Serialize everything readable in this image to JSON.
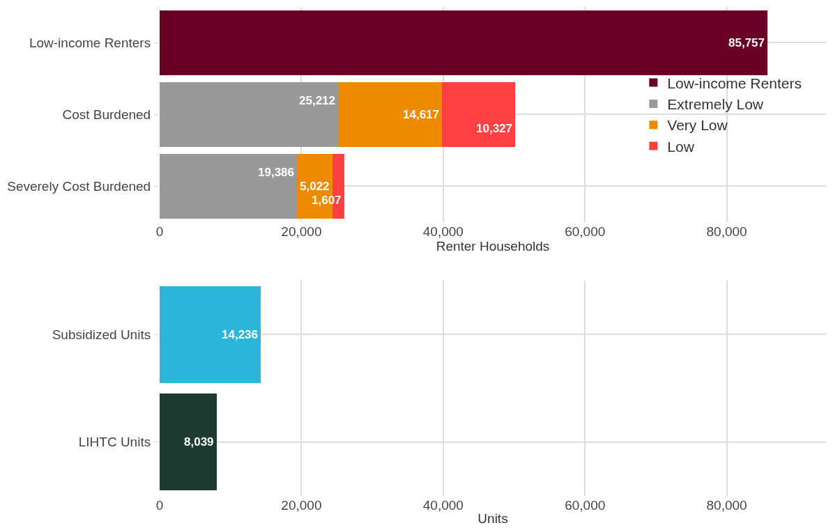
{
  "chart_data": [
    {
      "type": "bar",
      "orientation": "horizontal",
      "stacked": true,
      "categories": [
        "Low-income Renters",
        "Cost Burdened",
        "Severely Cost Burdened"
      ],
      "series": [
        {
          "name": "Low-income Renters",
          "color": "#6b0026",
          "values": [
            85757,
            null,
            null
          ],
          "value_labels": [
            "85,757",
            null,
            null
          ]
        },
        {
          "name": "Extremely Low",
          "color": "#999999",
          "values": [
            null,
            25212,
            19386
          ],
          "value_labels": [
            null,
            "25,212",
            "19,386"
          ]
        },
        {
          "name": "Very Low",
          "color": "#ee8a00",
          "values": [
            null,
            14617,
            5022
          ],
          "value_labels": [
            null,
            "14,617",
            "5,022"
          ]
        },
        {
          "name": "Low",
          "color": "#ff4040",
          "values": [
            null,
            10327,
            1607
          ],
          "value_labels": [
            null,
            "10,327",
            "1,607"
          ]
        }
      ],
      "xlabel": "Renter Households",
      "xlim": [
        0,
        94000
      ],
      "xticks": [
        0,
        {
          "value": 20000,
          "label": "20,000"
        },
        {
          "value": 40000,
          "label": "40,000"
        },
        {
          "value": 60000,
          "label": "60,000"
        },
        {
          "value": 80000,
          "label": "80,000"
        }
      ],
      "grid": true,
      "legend": "right"
    },
    {
      "type": "bar",
      "orientation": "horizontal",
      "categories": [
        "Subsidized Units",
        "LIHTC Units"
      ],
      "colors": [
        "#2bb5da",
        "#1d3b30"
      ],
      "values": [
        14236,
        8039
      ],
      "value_labels": [
        "14,236",
        "8,039"
      ],
      "xlabel": "Units",
      "xlim": [
        0,
        94000
      ],
      "xticks": [
        0,
        {
          "value": 20000,
          "label": "20,000"
        },
        {
          "value": 40000,
          "label": "40,000"
        },
        {
          "value": 60000,
          "label": "60,000"
        },
        {
          "value": 80000,
          "label": "80,000"
        }
      ],
      "grid": true,
      "legend": false
    }
  ]
}
